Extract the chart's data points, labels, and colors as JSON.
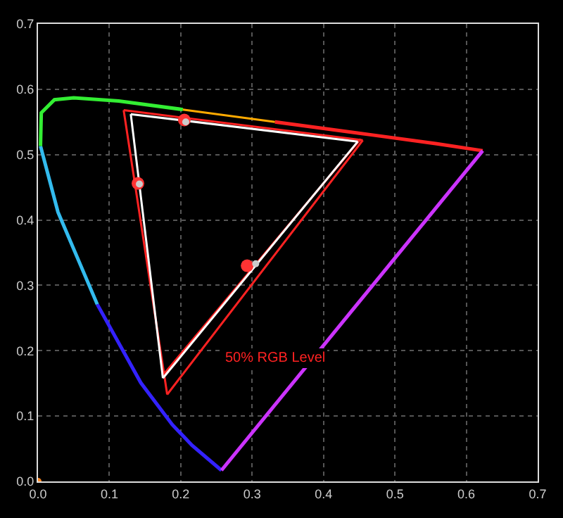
{
  "chart_data": {
    "type": "line",
    "xlim": [
      0,
      0.7
    ],
    "ylim": [
      0,
      0.7
    ],
    "xticks": [
      {
        "value": 0,
        "label": "0.0"
      },
      0.1,
      0.2,
      0.3,
      0.4,
      0.5,
      0.6,
      0.7
    ],
    "yticks": [
      {
        "value": 0,
        "label": "0.0"
      },
      0.1,
      0.2,
      0.3,
      0.4,
      0.5,
      0.6,
      0.7
    ],
    "grid": true,
    "line_style": "solid",
    "annotations": [
      "50% RGB Level"
    ],
    "series": [
      {
        "color": "#3322ff",
        "x": [
          0.257,
          0.216,
          0.188,
          0.144,
          0.083
        ],
        "values": [
          0.017,
          0.055,
          0.087,
          0.151,
          0.271
        ]
      },
      {
        "color": "#33bbee",
        "x": [
          0.083,
          0.028,
          0.0035
        ],
        "values": [
          0.271,
          0.412,
          0.513
        ]
      },
      {
        "color": "#33ee33",
        "x": [
          0.0035,
          0.0046,
          0.023,
          0.05,
          0.113,
          0.203
        ],
        "values": [
          0.513,
          0.564,
          0.584,
          0.587,
          0.582,
          0.569
        ]
      },
      {
        "color": "#ffaa00",
        "x": [
          0.203,
          0.332
        ],
        "values": [
          0.569,
          0.55
        ]
      },
      {
        "color": "#ff2222",
        "x": [
          0.332,
          0.469,
          0.557,
          0.623
        ],
        "values": [
          0.55,
          0.53,
          0.517,
          0.506
        ]
      },
      {
        "color": "#cc33ff",
        "x": [
          0.623,
          0.257
        ],
        "values": [
          0.506,
          0.017
        ]
      },
      {
        "color": "#ff2222",
        "x": [
          0.12,
          0.455
        ],
        "values": [
          0.568,
          0.522
        ]
      },
      {
        "color": "#ff2222",
        "x": [
          0.181,
          0.455
        ],
        "values": [
          0.133,
          0.522
        ]
      },
      {
        "color": "#ff2222",
        "x": [
          0.12,
          0.181
        ],
        "values": [
          0.568,
          0.133
        ]
      },
      {
        "color": "#ff2222",
        "x": [
          0.177,
          0.452
        ],
        "values": [
          0.165,
          0.524
        ]
      },
      {
        "color": "#ffffff",
        "x": [
          0.13,
          0.448
        ],
        "values": [
          0.562,
          0.52
        ]
      },
      {
        "color": "#ffffff",
        "x": [
          0.175,
          0.448
        ],
        "values": [
          0.158,
          0.52
        ]
      },
      {
        "color": "#ffffff",
        "x": [
          0.13,
          0.175
        ],
        "values": [
          0.562,
          0.158
        ]
      },
      {
        "type": "scatter",
        "marker": "circle",
        "color": "#ff3333",
        "x": [
          0.205,
          0.14,
          0.293
        ],
        "values": [
          0.553,
          0.456,
          0.33
        ]
      },
      {
        "type": "scatter",
        "marker": "circle",
        "color": "#cccccc",
        "x": [
          0.207,
          0.142,
          0.305
        ],
        "values": [
          0.55,
          0.455,
          0.333
        ]
      },
      {
        "type": "scatter",
        "marker": "circle",
        "color": "#ff8822",
        "x": [
          0
        ],
        "values": [
          0
        ]
      }
    ]
  }
}
